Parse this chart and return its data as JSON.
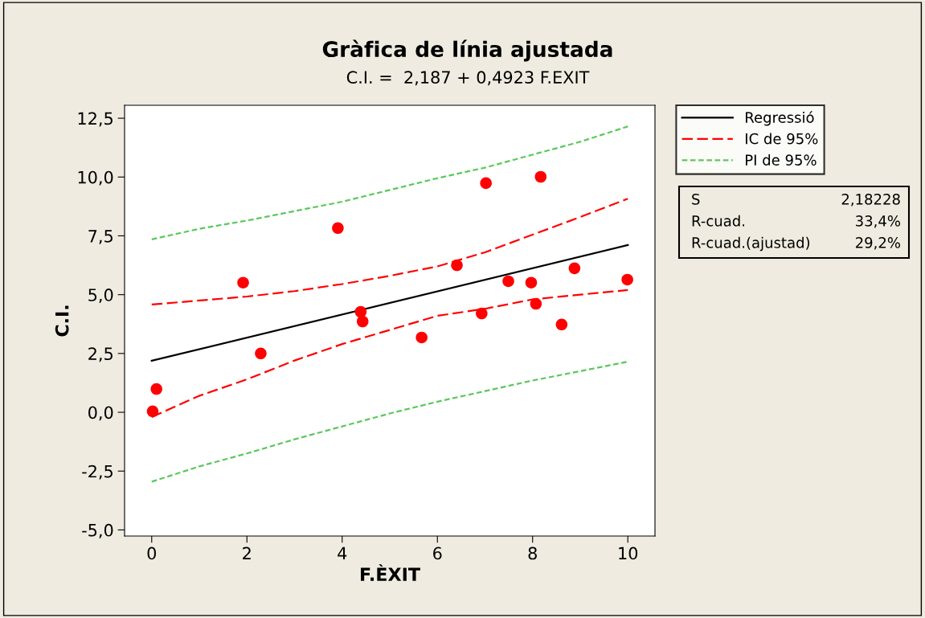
{
  "chart_data": {
    "type": "scatter",
    "title": "Gràfica de línia ajustada",
    "subtitle": "C.I. =  2,187 + 0,4923 F.EXIT",
    "xlabel": "F.ÈXIT",
    "ylabel": "C.I.",
    "xlim": [
      -0.57,
      10.57
    ],
    "ylim": [
      -5.26,
      13.05
    ],
    "xticks": [
      0,
      2,
      4,
      6,
      8,
      10
    ],
    "yticks": [
      {
        "value": -5,
        "label": "-5,0"
      },
      {
        "value": -2.5,
        "label": "-2,5"
      },
      {
        "value": 0,
        "label": "0,0"
      },
      {
        "value": 2.5,
        "label": "2,5"
      },
      {
        "value": 5,
        "label": "5,0"
      },
      {
        "value": 7.5,
        "label": "7,5"
      },
      {
        "value": 10,
        "label": "10,0"
      },
      {
        "value": 12.5,
        "label": "12,5"
      }
    ],
    "grid": false,
    "legend": "right",
    "series": [
      {
        "color": "#ff0000",
        "marker": "circle",
        "x": [
          0.02,
          0.1,
          1.92,
          2.29,
          3.91,
          4.39,
          4.43,
          5.67,
          6.41,
          6.93,
          7.02,
          7.49,
          7.97,
          8.07,
          8.17,
          8.61,
          8.88,
          9.99
        ],
        "values": [
          0.04,
          0.99,
          5.51,
          2.5,
          7.83,
          4.27,
          3.86,
          3.18,
          6.25,
          4.2,
          9.74,
          5.57,
          5.51,
          4.61,
          10.01,
          3.73,
          6.12,
          5.64
        ]
      },
      {
        "type": "line",
        "name": "Regressió",
        "color": "#000000",
        "line_style": "solid",
        "marker": "none",
        "x": [
          0,
          10
        ],
        "values": [
          2.19,
          7.11
        ]
      },
      {
        "type": "line",
        "name": "IC de 95%",
        "color": "#ff0000",
        "line_style": "dashed",
        "marker": "none",
        "x": [
          0,
          1,
          2,
          3,
          4,
          5,
          6,
          7,
          8,
          9,
          10
        ],
        "values": [
          4.58,
          4.75,
          4.92,
          5.15,
          5.45,
          5.8,
          6.2,
          6.8,
          7.55,
          8.3,
          9.08
        ]
      },
      {
        "type": "line",
        "color": "#ff0000",
        "line_style": "dashed",
        "marker": "none",
        "x": [
          0,
          1,
          2,
          3,
          4,
          5,
          6,
          7,
          8,
          9,
          10
        ],
        "values": [
          -0.2,
          0.7,
          1.4,
          2.2,
          2.9,
          3.5,
          4.1,
          4.4,
          4.8,
          5.0,
          5.2
        ]
      },
      {
        "type": "line",
        "name": "PI de 95%",
        "color": "#5cc85c",
        "line_style": "dotted",
        "marker": "none",
        "x": [
          0,
          1,
          2,
          3,
          4,
          5,
          6,
          7,
          8,
          9,
          10
        ],
        "values": [
          7.35,
          7.8,
          8.15,
          8.55,
          8.95,
          9.45,
          9.95,
          10.4,
          10.95,
          11.5,
          12.15
        ]
      },
      {
        "type": "line",
        "color": "#5cc85c",
        "line_style": "dotted",
        "marker": "none",
        "x": [
          0,
          1,
          2,
          3,
          4,
          5,
          6,
          7,
          8,
          9,
          10
        ],
        "values": [
          -2.95,
          -2.3,
          -1.75,
          -1.15,
          -0.6,
          -0.05,
          0.45,
          0.9,
          1.35,
          1.75,
          2.15
        ]
      }
    ],
    "annotations": [
      "S",
      "2,18228",
      "R-cuad.",
      "33,4%",
      "R-cuad.(ajustad)",
      "29,2%"
    ]
  }
}
